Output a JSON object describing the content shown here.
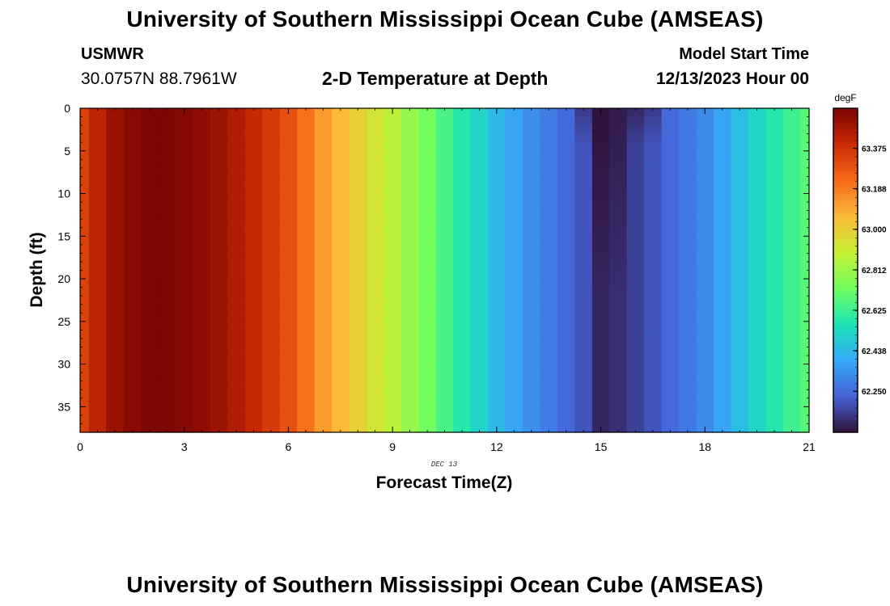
{
  "header": {
    "title": "University of Southern Mississippi Ocean Cube (AMSEAS)",
    "station": "USMWR",
    "coordinates": "30.0757N  88.7961W",
    "subtitle": "2-D Temperature at Depth",
    "model_start_label": "Model Start Time",
    "model_start_value": "12/13/2023 Hour 00"
  },
  "footer": {
    "title": "University of Southern Mississippi Ocean Cube (AMSEAS)"
  },
  "chart_data": {
    "type": "heatmap",
    "title": "2-D Temperature at Depth",
    "xlabel": "Forecast Time(Z)",
    "ylabel": "Depth (ft)",
    "date_label": "DEC 13",
    "xlim": [
      0,
      21
    ],
    "ylim": [
      0,
      38
    ],
    "x_ticks": [
      0,
      3,
      6,
      9,
      12,
      15,
      18,
      21
    ],
    "y_ticks": [
      0,
      5,
      10,
      15,
      20,
      25,
      30,
      35
    ],
    "colorbar": {
      "unit": "degF",
      "min": 62.06,
      "max": 63.56,
      "ticks": [
        "63.375",
        "63.188",
        "63.000",
        "62.812",
        "62.625",
        "62.438",
        "62.250"
      ],
      "colors": [
        "#30123b",
        "#4662d7",
        "#36aaf9",
        "#1ae4b6",
        "#72fe5e",
        "#c7ef34",
        "#fbb938",
        "#f56918",
        "#ca2a04",
        "#7a0403"
      ]
    },
    "times_hours": [
      0,
      0.5,
      1,
      1.5,
      2,
      2.5,
      3,
      3.5,
      4,
      4.5,
      5,
      5.5,
      6,
      6.5,
      7,
      7.5,
      8,
      8.5,
      9,
      9.5,
      10,
      10.5,
      11,
      11.5,
      12,
      12.5,
      13,
      13.5,
      14,
      14.5,
      15,
      15.5,
      16,
      16.5,
      17,
      17.5,
      18,
      18.5,
      19,
      19.5,
      20,
      20.5,
      21
    ],
    "temperature_degF": [
      63.33,
      63.42,
      63.5,
      63.53,
      63.55,
      63.55,
      63.54,
      63.52,
      63.49,
      63.45,
      63.4,
      63.35,
      63.29,
      63.21,
      63.12,
      63.06,
      62.99,
      62.93,
      62.87,
      62.8,
      62.73,
      62.65,
      62.58,
      62.51,
      62.44,
      62.38,
      62.33,
      62.29,
      62.24,
      62.2,
      62.1,
      62.12,
      62.16,
      62.2,
      62.24,
      62.28,
      62.32,
      62.38,
      62.45,
      62.52,
      62.58,
      62.63,
      62.68
    ],
    "anomaly": {
      "time_start": 14.5,
      "time_end": 16.5,
      "core_start": 15,
      "core_end": 16,
      "surface_depth_ft": 4,
      "surface_offset_degF": -0.05,
      "core_depth_ft": 22,
      "core_offset_degF": -0.04
    }
  }
}
